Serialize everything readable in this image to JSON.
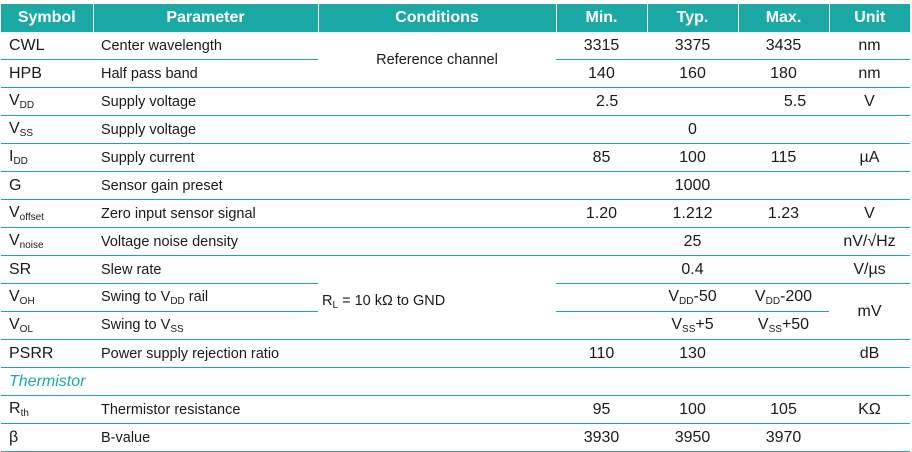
{
  "headers": {
    "symbol": "Symbol",
    "parameter": "Parameter",
    "conditions": "Conditions",
    "min": "Min.",
    "typ": "Typ.",
    "max": "Max.",
    "unit": "Unit"
  },
  "conditions": {
    "reference": "Reference channel",
    "rl_prefix": "R",
    "rl_sub": "L",
    "rl_rest": " = 10 kΩ to GND"
  },
  "rows": {
    "cwl": {
      "symbol": "CWL",
      "parameter": "Center wavelength",
      "min": "3315",
      "typ": "3375",
      "max": "3435",
      "unit": "nm"
    },
    "hpb": {
      "symbol": "HPB",
      "parameter": "Half pass band",
      "min": "140",
      "typ": "160",
      "max": "180",
      "unit": "nm"
    },
    "vdd": {
      "symbol": "V",
      "symbol_sub": "DD",
      "parameter": "Supply voltage",
      "min": "2.5",
      "max": "5.5",
      "unit": "V"
    },
    "vss": {
      "symbol": "V",
      "symbol_sub": "SS",
      "parameter": "Supply voltage",
      "typ": "0"
    },
    "idd": {
      "symbol": "I",
      "symbol_sub": "DD",
      "parameter": "Supply current",
      "min": "85",
      "typ": "100",
      "max": "115",
      "unit": "µA"
    },
    "g": {
      "symbol": "G",
      "parameter": "Sensor gain preset",
      "typ": "1000"
    },
    "voffset": {
      "symbol": "V",
      "symbol_sub": "offset",
      "parameter": "Zero input sensor signal",
      "min": "1.20",
      "typ": "1.212",
      "max": "1.23",
      "unit": "V"
    },
    "vnoise": {
      "symbol": "V",
      "symbol_sub": "noise",
      "parameter": "Voltage noise density",
      "typ": "25",
      "unit": "nV/√Hz"
    },
    "sr": {
      "symbol": "SR",
      "parameter": "Slew rate",
      "typ": "0.4",
      "unit": "V/µs"
    },
    "voh": {
      "symbol": "V",
      "symbol_sub": "OH",
      "parameter_pre": "Swing to V",
      "parameter_sub": "DD",
      "parameter_post": " rail",
      "typ_pre": "V",
      "typ_sub": "DD",
      "typ_post": "-50",
      "max_pre": "V",
      "max_sub": "DD",
      "max_post": "-200",
      "unit": "mV"
    },
    "vol": {
      "symbol": "V",
      "symbol_sub": "OL",
      "parameter_pre": "Swing to V",
      "parameter_sub": "SS",
      "typ_pre": "V",
      "typ_sub": "SS",
      "typ_post": "+5",
      "max_pre": "V",
      "max_sub": "SS",
      "max_post": "+50"
    },
    "psrr": {
      "symbol": "PSRR",
      "parameter": "Power supply rejection ratio",
      "min": "110",
      "typ": "130",
      "unit": "dB"
    },
    "rth": {
      "symbol": "R",
      "symbol_sub": "th",
      "parameter": "Thermistor resistance",
      "min": "95",
      "typ": "100",
      "max": "105",
      "unit": "KΩ"
    },
    "beta": {
      "symbol": "β",
      "parameter": "B-value",
      "min": "3930",
      "typ": "3950",
      "max": "3970"
    }
  },
  "section_thermistor": "Thermistor",
  "colors": {
    "accent": "#1aa9a4",
    "header_text": "#ffffff"
  }
}
